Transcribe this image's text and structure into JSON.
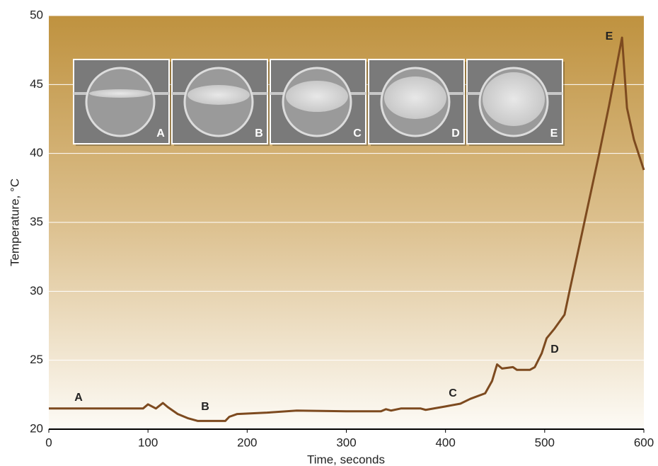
{
  "chart_data": {
    "type": "line",
    "x_label": "Time, seconds",
    "y_label": "Temperature, °C",
    "xlim": [
      0,
      600
    ],
    "xticks": [
      0,
      100,
      200,
      300,
      400,
      500,
      600
    ],
    "ylim": [
      20,
      50
    ],
    "yticks": [
      20,
      25,
      30,
      35,
      40,
      45,
      50
    ],
    "grid": true,
    "series": [
      {
        "color": "#7d4a1f",
        "x": [
          0,
          95,
          100,
          108,
          115,
          120,
          130,
          140,
          150,
          178,
          182,
          190,
          220,
          250,
          300,
          335,
          340,
          345,
          355,
          375,
          380,
          400,
          415,
          425,
          440,
          447,
          452,
          457,
          468,
          472,
          485,
          490,
          497,
          502,
          510,
          520,
          525,
          540,
          555,
          565,
          578,
          583,
          590,
          600
        ],
        "values": [
          21.5,
          21.5,
          21.8,
          21.5,
          21.9,
          21.6,
          21.1,
          20.8,
          20.6,
          20.6,
          20.9,
          21.1,
          21.2,
          21.35,
          21.3,
          21.3,
          21.45,
          21.35,
          21.5,
          21.5,
          21.4,
          21.65,
          21.85,
          22.2,
          22.6,
          23.5,
          24.7,
          24.4,
          24.5,
          24.3,
          24.3,
          24.5,
          25.5,
          26.6,
          27.3,
          28.3,
          30,
          35,
          40,
          43.5,
          48.4,
          43.3,
          41,
          38.8
        ]
      }
    ],
    "annotations": [
      "A",
      "B",
      "C",
      "D",
      "E"
    ]
  }
}
